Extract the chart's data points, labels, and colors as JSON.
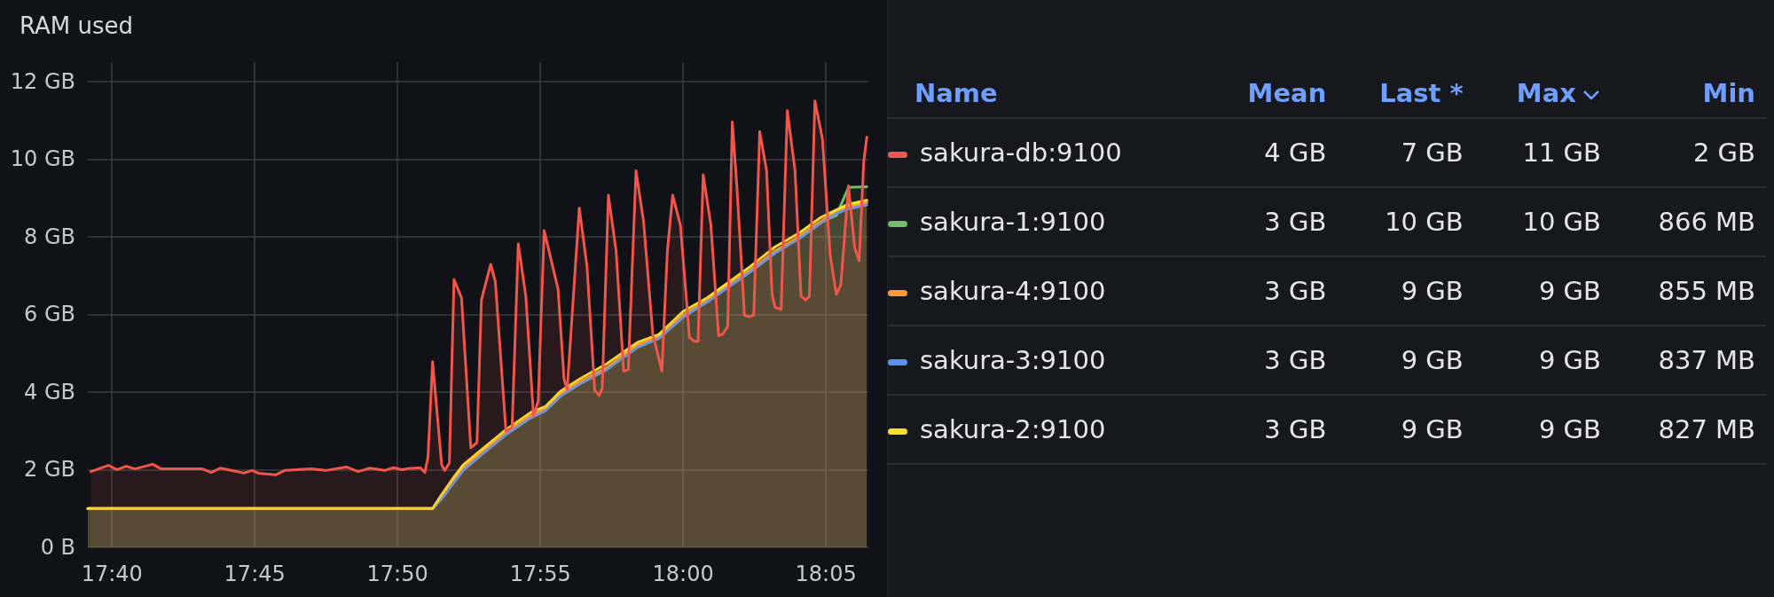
{
  "chart_data": {
    "type": "area",
    "title": "RAM used",
    "legend_title": "Name",
    "legend": "right",
    "grid": true,
    "xlim": [
      17.6526,
      18.1081
    ],
    "ylim": [
      0,
      12.5
    ],
    "xticks": [
      {
        "value": 17.6667,
        "label": "17:40"
      },
      {
        "value": 17.75,
        "label": "17:45"
      },
      {
        "value": 17.8333,
        "label": "17:50"
      },
      {
        "value": 17.9167,
        "label": "17:55"
      },
      {
        "value": 18,
        "label": "18:00"
      },
      {
        "value": 18.0833,
        "label": "18:05"
      }
    ],
    "yticks": [
      {
        "value": 0,
        "label": "0 B"
      },
      {
        "value": 2,
        "label": "2 GB"
      },
      {
        "value": 4,
        "label": "4 GB"
      },
      {
        "value": 6,
        "label": "6 GB"
      },
      {
        "value": 8,
        "label": "8 GB"
      },
      {
        "value": 10,
        "label": "10 GB"
      },
      {
        "value": 12,
        "label": "12 GB"
      }
    ],
    "annotations": [
      "Mean",
      "Last *",
      "Max",
      "Min",
      "4 GB",
      "7 GB",
      "11 GB",
      "2 GB",
      "3 GB",
      "10 GB",
      "10 GB",
      "866 MB",
      "3 GB",
      "9 GB",
      "9 GB",
      "855 MB",
      "3 GB",
      "9 GB",
      "9 GB",
      "837 MB",
      "3 GB",
      "9 GB",
      "9 GB",
      "827 MB"
    ],
    "series": [
      {
        "name": "sakura-db:9100",
        "color": "#f2564a",
        "x": [
          17.6544,
          17.6646,
          17.6698,
          17.6749,
          17.6801,
          17.6904,
          17.6955,
          17.7058,
          17.7195,
          17.7246,
          17.7298,
          17.7401,
          17.7435,
          17.7486,
          17.7521,
          17.7624,
          17.7675,
          17.7829,
          17.7915,
          17.8035,
          17.8103,
          17.8172,
          17.8258,
          17.8309,
          17.8361,
          17.8395,
          17.8466,
          17.8493,
          17.8511,
          17.8538,
          17.8591,
          17.8609,
          17.8636,
          17.8663,
          17.8707,
          17.8761,
          17.8797,
          17.8823,
          17.8877,
          17.8904,
          17.8966,
          17.9002,
          17.9038,
          17.9082,
          17.9127,
          17.9154,
          17.9189,
          17.927,
          17.9305,
          17.9323,
          17.9394,
          17.9439,
          17.9484,
          17.951,
          17.9528,
          17.9564,
          17.9609,
          17.9653,
          17.968,
          17.9725,
          17.9769,
          17.9823,
          17.9876,
          17.9908,
          17.9939,
          17.9984,
          18.0037,
          18.0064,
          18.0087,
          18.0117,
          18.0162,
          18.0207,
          18.0233,
          18.026,
          18.0287,
          18.0314,
          18.0358,
          18.0385,
          18.0412,
          18.0447,
          18.0487,
          18.0519,
          18.0537,
          18.0572,
          18.0608,
          18.0653,
          18.0688,
          18.0715,
          18.0737,
          18.0769,
          18.0813,
          18.0858,
          18.0894,
          18.092,
          18.0965,
          18.1001,
          18.1027,
          18.1054,
          18.1072
        ],
        "values": [
          1.95,
          2.11,
          2.0,
          2.09,
          2.02,
          2.14,
          2.02,
          2.02,
          2.02,
          1.93,
          2.04,
          1.95,
          1.91,
          1.98,
          1.91,
          1.87,
          1.98,
          2.02,
          1.98,
          2.07,
          1.95,
          2.04,
          1.98,
          2.05,
          2.0,
          2.03,
          2.05,
          1.93,
          2.32,
          4.78,
          2.12,
          1.98,
          2.17,
          6.9,
          6.42,
          2.56,
          2.7,
          6.37,
          7.29,
          6.85,
          2.99,
          3.09,
          7.82,
          6.47,
          3.38,
          3.76,
          8.16,
          6.66,
          4.34,
          4.05,
          8.74,
          7.24,
          4.05,
          3.91,
          4.1,
          9.07,
          7.63,
          4.54,
          4.58,
          9.7,
          8.4,
          5.5,
          4.54,
          7.63,
          9.07,
          8.3,
          5.41,
          5.31,
          5.31,
          9.6,
          8.3,
          5.45,
          5.5,
          5.69,
          10.96,
          9.27,
          5.98,
          5.94,
          5.98,
          10.71,
          9.7,
          6.52,
          6.18,
          6.13,
          11.25,
          9.7,
          6.47,
          6.37,
          6.47,
          11.5,
          10.52,
          7.53,
          6.52,
          6.76,
          9.31,
          7.72,
          7.38,
          9.94,
          10.57
        ]
      },
      {
        "name": "sakura-1:9100",
        "color": "#73bf69",
        "x": [
          17.6526,
          17.8538,
          17.8591,
          17.8654,
          17.8716,
          17.8841,
          17.8966,
          17.9109,
          17.9198,
          17.9287,
          17.9394,
          17.9555,
          17.9734,
          17.9858,
          18.0001,
          18.0144,
          18.0269,
          18.0394,
          18.0537,
          18.0679,
          18.0804,
          18.0894,
          18.0965,
          18.1072
        ],
        "values": [
          1.0,
          1.0,
          1.28,
          1.66,
          2.0,
          2.48,
          2.92,
          3.36,
          3.55,
          3.93,
          4.22,
          4.6,
          5.18,
          5.4,
          5.95,
          6.35,
          6.74,
          7.12,
          7.6,
          7.98,
          8.38,
          8.55,
          9.27,
          9.29
        ]
      },
      {
        "name": "sakura-4:9100",
        "color": "#ff9830",
        "x": [
          17.6526,
          17.8538,
          17.8591,
          17.8654,
          17.8716,
          17.8841,
          17.8966,
          17.9109,
          17.9198,
          17.9287,
          17.9394,
          17.9555,
          17.9734,
          17.9858,
          18.0001,
          18.0144,
          18.0269,
          18.0394,
          18.0537,
          18.0679,
          18.0804,
          18.0894,
          18.0965,
          18.1072
        ],
        "values": [
          1.0,
          1.0,
          1.3,
          1.69,
          2.03,
          2.51,
          2.94,
          3.38,
          3.57,
          3.96,
          4.25,
          4.63,
          5.21,
          5.41,
          5.98,
          6.37,
          6.76,
          7.14,
          7.63,
          8.01,
          8.4,
          8.64,
          8.78,
          8.88
        ]
      },
      {
        "name": "sakura-3:9100",
        "color": "#5794f2",
        "x": [
          17.6526,
          17.8538,
          17.8591,
          17.8654,
          17.8716,
          17.8841,
          17.8966,
          17.9109,
          17.9198,
          17.9287,
          17.9394,
          17.9555,
          17.9734,
          17.9858,
          18.0001,
          18.0144,
          18.0269,
          18.0394,
          18.0537,
          18.0679,
          18.0804,
          18.0894,
          18.0965,
          18.1072
        ],
        "values": [
          1.0,
          1.0,
          1.25,
          1.62,
          1.98,
          2.45,
          2.9,
          3.33,
          3.52,
          3.9,
          4.2,
          4.58,
          5.15,
          5.38,
          5.93,
          6.33,
          6.72,
          7.1,
          7.58,
          7.96,
          8.35,
          8.6,
          8.72,
          8.82
        ]
      },
      {
        "name": "sakura-2:9100",
        "color": "#fade2a",
        "x": [
          17.6526,
          17.8538,
          17.8591,
          17.8654,
          17.8716,
          17.8841,
          17.8966,
          17.9109,
          17.9198,
          17.9287,
          17.9394,
          17.9555,
          17.9734,
          17.9858,
          18.0001,
          18.0144,
          18.0269,
          18.0394,
          18.0537,
          18.0679,
          18.0804,
          18.0894,
          18.0965,
          18.1072
        ],
        "values": [
          1.0,
          1.0,
          1.36,
          1.76,
          2.12,
          2.58,
          3.03,
          3.47,
          3.63,
          4.03,
          4.33,
          4.73,
          5.28,
          5.48,
          6.08,
          6.44,
          6.84,
          7.24,
          7.74,
          8.1,
          8.5,
          8.69,
          8.84,
          8.94
        ]
      }
    ]
  }
}
